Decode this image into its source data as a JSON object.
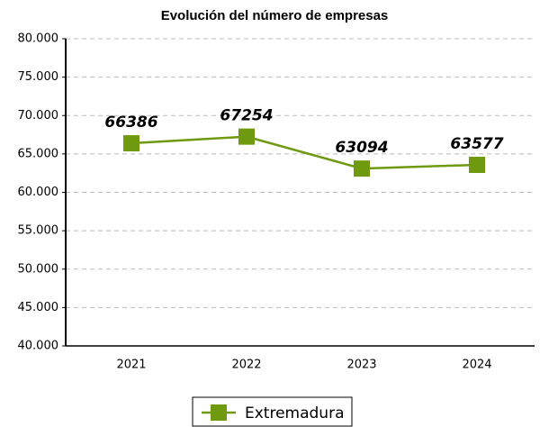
{
  "chart_data": {
    "type": "line",
    "title": "Evolución del número de empresas",
    "categories": [
      "2021",
      "2022",
      "2023",
      "2024"
    ],
    "series": [
      {
        "name": "Extremadura",
        "color": "#6f9a10",
        "values": [
          66386,
          67254,
          63094,
          63577
        ]
      }
    ],
    "ylim": [
      40000,
      80000
    ],
    "yticks": [
      {
        "value": 40000,
        "label": "40.000"
      },
      {
        "value": 45000,
        "label": "45.000"
      },
      {
        "value": 50000,
        "label": "50.000"
      },
      {
        "value": 55000,
        "label": "55.000"
      },
      {
        "value": 60000,
        "label": "60.000"
      },
      {
        "value": 65000,
        "label": "65.000"
      },
      {
        "value": 70000,
        "label": "70.000"
      },
      {
        "value": 75000,
        "label": "75.000"
      },
      {
        "value": 80000,
        "label": "80.000"
      }
    ],
    "grid": true,
    "legend": "bottom"
  }
}
